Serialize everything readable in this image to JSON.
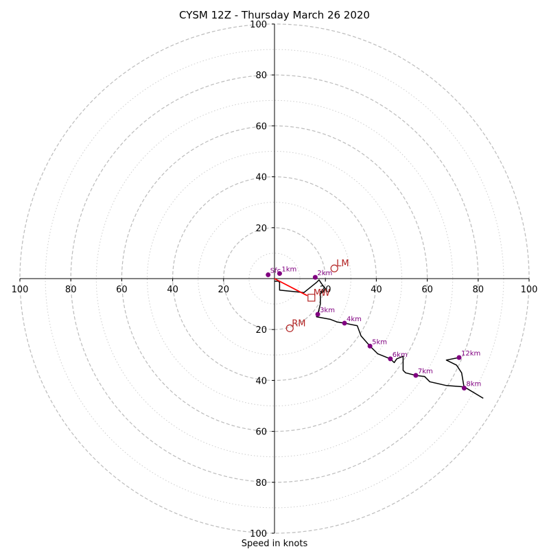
{
  "chart_data": {
    "type": "line",
    "title": "CYSM 12Z - Thursday March 26 2020",
    "xlabel": "Speed in knots",
    "units": "knots",
    "range": [
      0,
      100
    ],
    "ring_major": [
      20,
      40,
      60,
      80,
      100
    ],
    "ring_minor": [
      10,
      30,
      50,
      70,
      90
    ],
    "x_ticks": [
      "100",
      "80",
      "60",
      "40",
      "20",
      "20",
      "40",
      "60",
      "80",
      "100"
    ],
    "y_ticks": [
      "100",
      "80",
      "60",
      "40",
      "20",
      "20",
      "40",
      "60",
      "80",
      "100"
    ],
    "colors": {
      "profile": "#000000",
      "height_marker": "#800080",
      "mean_wind": "#ff0000",
      "storm_motion": "#b22222",
      "grid": "#bbbbbb"
    },
    "wind_profile": {
      "u": [
        0,
        1.5,
        2,
        2,
        11.5,
        16.5,
        17.5,
        18.5,
        20,
        18,
        18,
        17,
        17.5,
        16.5,
        22,
        24.5,
        27.5,
        32.5,
        34,
        37.5,
        40.5,
        45.5,
        47,
        48,
        50.5,
        50.5,
        51.5,
        55.5,
        59,
        61,
        67.5,
        74.5,
        82
      ],
      "v": [
        -1,
        -1,
        -1.5,
        -4.5,
        -5.5,
        -1.5,
        -0.5,
        -2,
        -4,
        -6,
        -10,
        -14,
        -12.5,
        -15,
        -16,
        -17,
        -17.5,
        -18.5,
        -22.5,
        -26.5,
        -29.5,
        -31.5,
        -33,
        -31.5,
        -30.5,
        -36,
        -37,
        -38,
        -38.5,
        -40.5,
        -42,
        -42.5,
        -47
      ]
    },
    "height_markers": [
      {
        "label": "Sfc",
        "u": -2.5,
        "v": 1.5
      },
      {
        "label": "1km",
        "u": 2,
        "v": 2
      },
      {
        "label": "2km",
        "u": 16,
        "v": 0.5
      },
      {
        "label": "3km",
        "u": 17,
        "v": -14
      },
      {
        "label": "4km",
        "u": 27.5,
        "v": -17.5
      },
      {
        "label": "5km",
        "u": 37.5,
        "v": -26.5
      },
      {
        "label": "6km",
        "u": 45.5,
        "v": -31.5
      },
      {
        "label": "7km",
        "u": 55.5,
        "v": -38
      },
      {
        "label": "8km",
        "u": 74.5,
        "v": -43
      },
      {
        "label": "12km",
        "u": 72.5,
        "v": -31
      }
    ],
    "upper_segment": {
      "u": [
        74.5,
        73.5,
        71.5,
        68.5,
        67.5,
        72.5
      ],
      "v": [
        -43,
        -37,
        -34,
        -32.5,
        -32,
        -31
      ]
    },
    "mean_wind": {
      "label": "MW",
      "u": 14.5,
      "v": -7.5
    },
    "storm_motions": [
      {
        "label": "LM",
        "u": 23.5,
        "v": 4
      },
      {
        "label": "RM",
        "u": 6,
        "v": -19.5
      }
    ]
  }
}
